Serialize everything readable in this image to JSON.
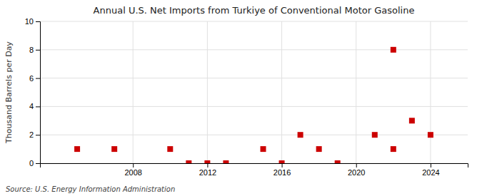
{
  "chart_data": {
    "type": "scatter",
    "title": "Annual U.S. Net Imports from Turkiye of Conventional Motor Gasoline",
    "ylabel": "Thousand Barrels per Day",
    "annotations": [
      "Source: U.S. Energy Information Administration"
    ],
    "x": [
      2005,
      2007,
      2010,
      2011,
      2012,
      2013,
      2015,
      2016,
      2017,
      2018,
      2019,
      2021,
      2022,
      2022,
      2023,
      2024
    ],
    "values": [
      1,
      1,
      1,
      0,
      0,
      0,
      1,
      0,
      2,
      1,
      0,
      2,
      8,
      1,
      3,
      2
    ],
    "color": "#cc0000",
    "marker": "square",
    "xlim": [
      2003,
      2026
    ],
    "ylim": [
      0,
      10
    ],
    "xticks": [
      2008,
      2012,
      2016,
      2020,
      2024
    ],
    "yticks": [
      0,
      2,
      4,
      6,
      8,
      10
    ],
    "grid": true
  }
}
